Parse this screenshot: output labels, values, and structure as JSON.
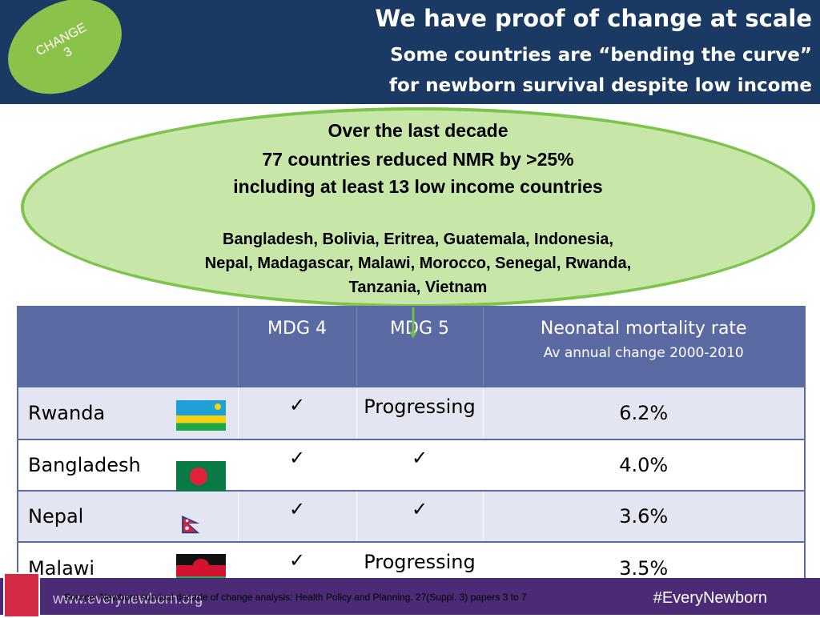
{
  "header": {
    "title": "We have proof of change at scale",
    "subtitle_line1": "Some countries are “bending the curve”",
    "subtitle_line2": "for newborn survival despite low income"
  },
  "badge": {
    "line1": "CHANGE",
    "line2": "3"
  },
  "callout": {
    "line1": "Over the last decade",
    "line2": "77 countries reduced NMR by >25%",
    "line3": "including  at least 13 low income countries",
    "countries1": "Bangladesh, Bolivia, Eritrea, Guatemala, Indonesia,",
    "countries2": "Nepal, Madagascar, Malawi, Morocco, Senegal, Rwanda,",
    "countries3": "Tanzania, Vietnam"
  },
  "table": {
    "headers": {
      "col1": "",
      "col2": "MDG 4",
      "col3": "MDG 5",
      "col4": "Neonatal mortality rate",
      "col4_sub": "Av annual change 2000-2010"
    },
    "rows": [
      {
        "country": "Rwanda",
        "mdg4": "✓",
        "mdg5": "Progressing",
        "nmr": "6.2%"
      },
      {
        "country": "Bangladesh",
        "mdg4": "✓",
        "mdg5": "✓",
        "nmr": "4.0%"
      },
      {
        "country": "Nepal",
        "mdg4": "✓",
        "mdg5": "✓",
        "nmr": "3.6%"
      },
      {
        "country": "Malawi",
        "mdg4": "✓",
        "mdg5": "Progressing",
        "nmr": "3.5%"
      }
    ]
  },
  "footer": {
    "url": "www.everynewborn.org",
    "source": "Source: Newborn survival decade of change analysis: Health Policy and Planning. 27(Suppl. 3) papers 3 to 7",
    "hashtag": "#EveryNewborn"
  },
  "icons": {
    "flags": [
      "rwanda-flag",
      "bangladesh-flag",
      "nepal-flag",
      "malawi-flag"
    ]
  },
  "colors": {
    "header_bg": "#1b3a63",
    "badge": "#8ac24a",
    "ellipse_fill": "#c8e6a8",
    "table_header": "#5c6aa4",
    "footer_bg": "#4b2a76"
  }
}
